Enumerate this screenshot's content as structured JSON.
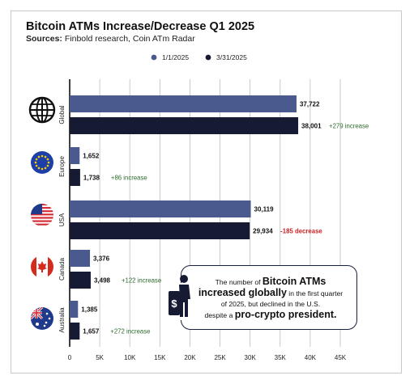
{
  "header": {
    "title": "Bitcoin ATMs Increase/Decrease Q1 2025",
    "sources_label": "Sources:",
    "sources_text": " Finbold research, Coin ATm Radar"
  },
  "callout": {
    "line1_prefix": "The number of ",
    "line1_big": "Bitcoin ATMs",
    "line2_big": "increased globally",
    "line2_suffix": " in the first quarter",
    "line3": "of 2025, but declined in the U.S.",
    "line4_prefix": "despite a ",
    "line4_big": "pro-crypto president."
  },
  "colors": {
    "series_1": "#4a5a8f",
    "series_2": "#161a33",
    "increase": "#2e6b2e",
    "decrease": "#cc2222",
    "grid": "#bdbdbd"
  },
  "chart_data": {
    "type": "bar",
    "orientation": "horizontal",
    "title": "Bitcoin ATMs Increase/Decrease Q1 2025",
    "categories": [
      "Global",
      "Europe",
      "USA",
      "Canada",
      "Australia"
    ],
    "category_icons": [
      "globe-icon",
      "eu-flag-icon",
      "us-flag-icon",
      "canada-flag-icon",
      "australia-flag-icon"
    ],
    "series": [
      {
        "name": "1/1/2025",
        "values": [
          37722,
          1652,
          30119,
          3376,
          1385
        ],
        "labels": [
          "37,722",
          "1,652",
          "30,119",
          "3,376",
          "1,385"
        ]
      },
      {
        "name": "3/31/2025",
        "values": [
          38001,
          1738,
          29934,
          3498,
          1657
        ],
        "labels": [
          "38,001",
          "1,738",
          "29,934",
          "3,498",
          "1,657"
        ]
      }
    ],
    "change_labels": [
      "+279 increase",
      "+86 increase",
      "-185 decrease",
      "+122 increase",
      "+272 increase"
    ],
    "change_direction": [
      "increase",
      "increase",
      "decrease",
      "increase",
      "increase"
    ],
    "xlim": [
      0,
      45000
    ],
    "xticks": [
      0,
      5000,
      10000,
      15000,
      20000,
      25000,
      30000,
      35000,
      40000,
      45000
    ],
    "xtick_labels": [
      "0",
      "5K",
      "10K",
      "15K",
      "20K",
      "25K",
      "30K",
      "35K",
      "40K",
      "45K"
    ],
    "legend_position": "top-center",
    "grid": true
  }
}
